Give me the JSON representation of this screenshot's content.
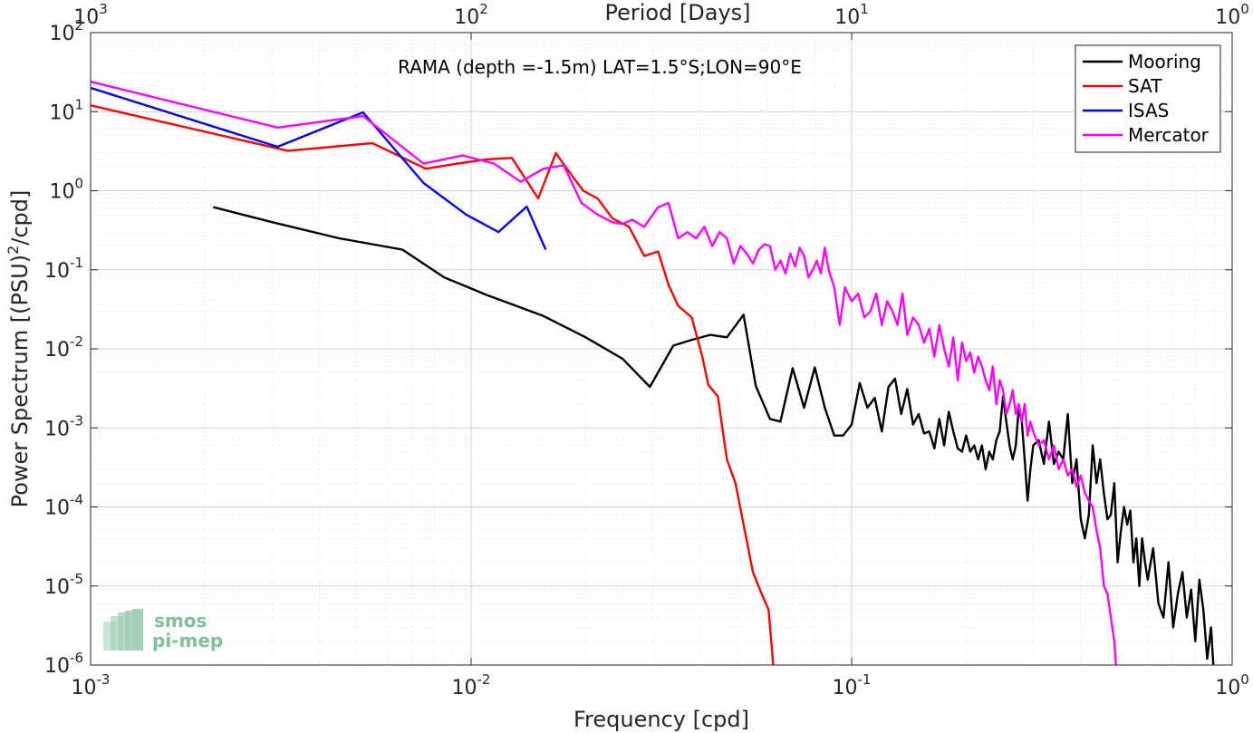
{
  "chart_data": {
    "type": "line",
    "title": "RAMA (depth =-1.5m) LAT=1.5°S;LON=90°E",
    "xlabel": "Frequency [cpd]",
    "ylabel_main": "Power Spectrum [(PSU)",
    "ylabel_sup": "2",
    "ylabel_tail": "/cpd]",
    "x2label": "Period [Days]",
    "xscale": "log",
    "yscale": "log",
    "xlim": [
      0.001,
      1
    ],
    "ylim": [
      1e-06,
      100
    ],
    "grid": true,
    "legend_position": "top-right",
    "x_ticks": [
      {
        "base": "10",
        "exp": "-3"
      },
      {
        "base": "10",
        "exp": "-2"
      },
      {
        "base": "10",
        "exp": "-1"
      },
      {
        "base": "10",
        "exp": "0"
      }
    ],
    "y_ticks": [
      {
        "base": "10",
        "exp": "-6"
      },
      {
        "base": "10",
        "exp": "-5"
      },
      {
        "base": "10",
        "exp": "-4"
      },
      {
        "base": "10",
        "exp": "-3"
      },
      {
        "base": "10",
        "exp": "-2"
      },
      {
        "base": "10",
        "exp": "-1"
      },
      {
        "base": "10",
        "exp": "0"
      },
      {
        "base": "10",
        "exp": "1"
      },
      {
        "base": "10",
        "exp": "2"
      }
    ],
    "x2_ticks": [
      {
        "base": "10",
        "exp": "3"
      },
      {
        "base": "10",
        "exp": "2"
      },
      {
        "base": "10",
        "exp": "1"
      },
      {
        "base": "10",
        "exp": "0"
      }
    ],
    "series": [
      {
        "name": "Mooring",
        "color": "#000000",
        "x": [
          0.0021,
          0.003,
          0.0045,
          0.0066,
          0.0085,
          0.011,
          0.0155,
          0.02,
          0.025,
          0.0295,
          0.034,
          0.038,
          0.0425,
          0.047,
          0.052,
          0.056,
          0.061,
          0.065,
          0.07,
          0.075,
          0.08,
          0.085,
          0.09,
          0.095,
          0.1,
          0.105,
          0.11,
          0.115,
          0.12,
          0.125,
          0.13,
          0.135,
          0.14,
          0.145,
          0.15,
          0.155,
          0.16,
          0.165,
          0.17,
          0.175,
          0.18,
          0.185,
          0.19,
          0.195,
          0.2,
          0.205,
          0.21,
          0.215,
          0.22,
          0.225,
          0.23,
          0.235,
          0.24,
          0.245,
          0.25,
          0.255,
          0.26,
          0.265,
          0.27,
          0.275,
          0.28,
          0.285,
          0.29,
          0.295,
          0.3,
          0.31,
          0.32,
          0.33,
          0.34,
          0.35,
          0.36,
          0.37,
          0.38,
          0.39,
          0.4,
          0.41,
          0.42,
          0.43,
          0.44,
          0.45,
          0.46,
          0.47,
          0.48,
          0.49,
          0.5,
          0.51,
          0.52,
          0.53,
          0.54,
          0.55,
          0.56,
          0.57,
          0.58,
          0.59,
          0.6,
          0.62,
          0.64,
          0.66,
          0.68,
          0.7,
          0.72,
          0.74,
          0.76,
          0.78,
          0.8,
          0.82,
          0.84,
          0.86,
          0.88,
          0.9
        ],
        "y": [
          0.62,
          0.4,
          0.25,
          0.18,
          0.08,
          0.048,
          0.026,
          0.014,
          0.0075,
          0.0033,
          0.011,
          0.013,
          0.015,
          0.014,
          0.027,
          0.0034,
          0.0013,
          0.0012,
          0.0057,
          0.0018,
          0.0058,
          0.0018,
          0.0008,
          0.0008,
          0.0011,
          0.0037,
          0.0018,
          0.0024,
          0.0009,
          0.0033,
          0.0042,
          0.0015,
          0.0031,
          0.0011,
          0.0015,
          0.00085,
          0.0009,
          0.00055,
          0.0013,
          0.0006,
          0.0016,
          0.0009,
          0.00055,
          0.0005,
          0.0008,
          0.0005,
          0.0006,
          0.0004,
          0.0006,
          0.0003,
          0.0005,
          0.0004,
          0.0007,
          0.0009,
          0.0025,
          0.0012,
          0.0006,
          0.0004,
          0.0006,
          0.0018,
          0.0012,
          0.0004,
          0.00012,
          0.0003,
          0.0006,
          0.0007,
          0.00035,
          0.0012,
          0.00035,
          0.0005,
          0.0004,
          0.0015,
          0.0002,
          0.0004,
          7e-05,
          4e-05,
          8e-05,
          0.0006,
          0.0002,
          0.0004,
          0.00015,
          7e-05,
          8e-05,
          0.0002,
          2e-05,
          5e-05,
          0.0001,
          6e-05,
          9e-05,
          2e-05,
          4e-05,
          1e-05,
          4e-05,
          2e-05,
          1.2e-05,
          3e-05,
          6e-06,
          4e-06,
          2e-05,
          3e-06,
          8e-06,
          1.5e-05,
          4e-06,
          9e-06,
          2e-06,
          1.2e-05,
          5e-06,
          1.2e-06,
          3e-06,
          5e-07
        ]
      },
      {
        "name": "SAT",
        "color": "#ff0000",
        "x": [
          0.001,
          0.0033,
          0.0055,
          0.0076,
          0.0092,
          0.011,
          0.0128,
          0.015,
          0.0167,
          0.018,
          0.0197,
          0.0215,
          0.0235,
          0.026,
          0.0285,
          0.031,
          0.033,
          0.035,
          0.038,
          0.0405,
          0.042,
          0.0445,
          0.047,
          0.0495,
          0.052,
          0.055,
          0.058,
          0.0605,
          0.063
        ],
        "y": [
          12,
          3.2,
          4,
          1.9,
          2.2,
          2.5,
          2.6,
          0.8,
          3.0,
          1.8,
          1.0,
          0.8,
          0.45,
          0.35,
          0.15,
          0.17,
          0.065,
          0.035,
          0.025,
          0.008,
          0.0035,
          0.0025,
          0.0004,
          0.0002,
          6e-05,
          1.5e-05,
          8e-06,
          5e-06,
          5e-07
        ]
      },
      {
        "name": "ISAS",
        "color": "#0000ff",
        "x": [
          0.001,
          0.0031,
          0.0052,
          0.0075,
          0.0097,
          0.0118,
          0.014,
          0.0157
        ],
        "y": [
          20,
          3.6,
          9.8,
          1.25,
          0.5,
          0.3,
          0.63,
          0.18
        ]
      },
      {
        "name": "Mercator",
        "color": "#ff00ff",
        "x": [
          0.001,
          0.0031,
          0.0052,
          0.0075,
          0.0095,
          0.0115,
          0.0135,
          0.0155,
          0.0175,
          0.0195,
          0.0215,
          0.0235,
          0.025,
          0.0265,
          0.0285,
          0.031,
          0.033,
          0.035,
          0.037,
          0.039,
          0.041,
          0.043,
          0.045,
          0.047,
          0.049,
          0.051,
          0.053,
          0.055,
          0.057,
          0.059,
          0.061,
          0.063,
          0.065,
          0.067,
          0.069,
          0.071,
          0.073,
          0.075,
          0.077,
          0.079,
          0.081,
          0.083,
          0.085,
          0.087,
          0.09,
          0.093,
          0.096,
          0.1,
          0.104,
          0.108,
          0.112,
          0.116,
          0.12,
          0.124,
          0.128,
          0.132,
          0.136,
          0.14,
          0.145,
          0.15,
          0.155,
          0.16,
          0.165,
          0.17,
          0.175,
          0.18,
          0.185,
          0.19,
          0.195,
          0.2,
          0.205,
          0.21,
          0.215,
          0.22,
          0.225,
          0.23,
          0.235,
          0.24,
          0.245,
          0.25,
          0.255,
          0.26,
          0.265,
          0.27,
          0.275,
          0.28,
          0.285,
          0.29,
          0.295,
          0.3,
          0.31,
          0.32,
          0.33,
          0.34,
          0.35,
          0.36,
          0.37,
          0.38,
          0.39,
          0.4,
          0.41,
          0.42,
          0.43,
          0.44,
          0.45,
          0.46,
          0.47,
          0.48,
          0.49,
          0.5
        ],
        "y": [
          24,
          6.3,
          8.8,
          2.2,
          2.8,
          2.2,
          1.3,
          1.9,
          2.1,
          0.7,
          0.5,
          0.4,
          0.38,
          0.43,
          0.35,
          0.62,
          0.7,
          0.25,
          0.3,
          0.25,
          0.35,
          0.2,
          0.3,
          0.25,
          0.12,
          0.2,
          0.16,
          0.12,
          0.18,
          0.21,
          0.2,
          0.1,
          0.13,
          0.09,
          0.16,
          0.11,
          0.19,
          0.15,
          0.08,
          0.1,
          0.13,
          0.09,
          0.19,
          0.1,
          0.06,
          0.02,
          0.06,
          0.04,
          0.05,
          0.025,
          0.03,
          0.05,
          0.02,
          0.04,
          0.03,
          0.02,
          0.05,
          0.015,
          0.025,
          0.02,
          0.012,
          0.018,
          0.008,
          0.02,
          0.01,
          0.006,
          0.014,
          0.004,
          0.012,
          0.007,
          0.009,
          0.005,
          0.008,
          0.006,
          0.004,
          0.003,
          0.006,
          0.002,
          0.004,
          0.003,
          0.0015,
          0.002,
          0.003,
          0.0015,
          0.002,
          0.0012,
          0.002,
          0.0008,
          0.0012,
          0.0009,
          0.0006,
          0.0007,
          0.0004,
          0.0006,
          0.0003,
          0.0004,
          0.00025,
          0.0003,
          0.00018,
          0.00025,
          0.00015,
          0.00012,
          0.0001,
          5e-05,
          3e-05,
          1e-05,
          8e-06,
          4e-06,
          2e-06,
          5e-07
        ]
      }
    ],
    "logo": {
      "line1": "smos",
      "line2": "pi-mep"
    }
  }
}
